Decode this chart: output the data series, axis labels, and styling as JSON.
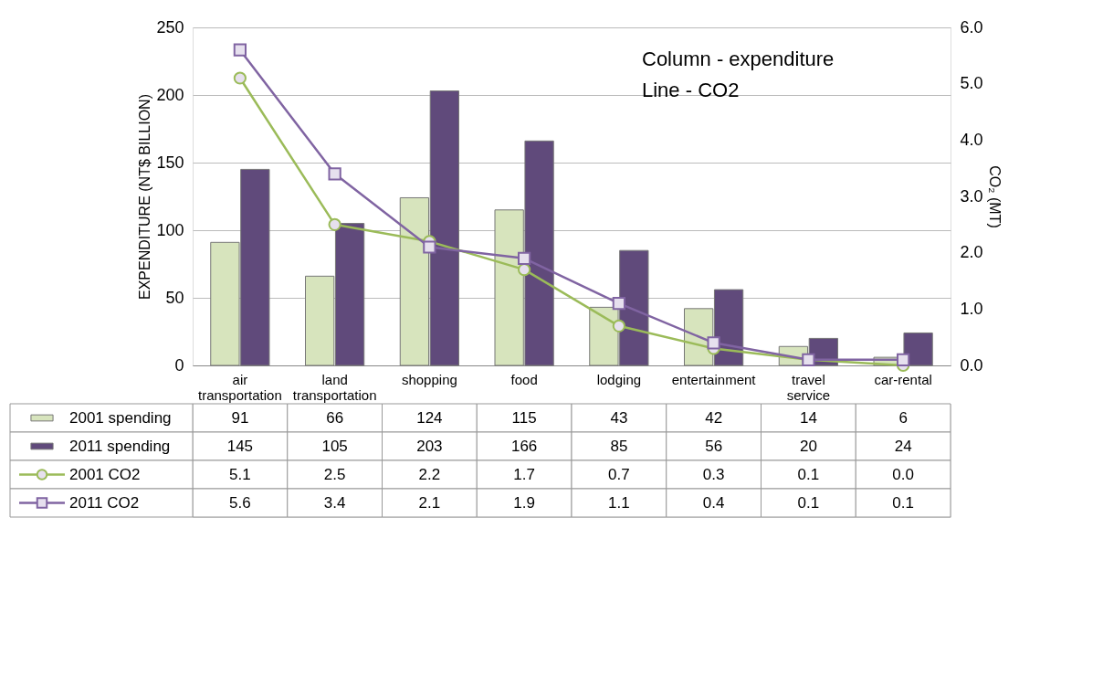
{
  "chart_data": {
    "type": "bar",
    "categories": [
      "air transportation",
      "land transportation",
      "shopping",
      "food",
      "lodging",
      "entertainment",
      "travel service",
      "car-rental"
    ],
    "series": [
      {
        "name": "2001 spending",
        "color": "#d7e4bd",
        "values": [
          91,
          66,
          124,
          115,
          43,
          42,
          14,
          6
        ],
        "value_labels": [
          "91",
          "66",
          "124",
          "115",
          "43",
          "42",
          "14",
          "6"
        ]
      },
      {
        "name": "2011 spending",
        "color": "#604a7b",
        "values": [
          145,
          105,
          203,
          166,
          85,
          56,
          20,
          24
        ],
        "value_labels": [
          "145",
          "105",
          "203",
          "166",
          "85",
          "56",
          "20",
          "24"
        ]
      },
      {
        "name": "2001 CO2",
        "type": "line",
        "axis": "y2",
        "marker": "circle",
        "color": "#9bbb59",
        "values": [
          5.1,
          2.5,
          2.2,
          1.7,
          0.7,
          0.3,
          0.1,
          0.0
        ],
        "value_labels": [
          "5.1",
          "2.5",
          "2.2",
          "1.7",
          "0.7",
          "0.3",
          "0.1",
          "0.0"
        ]
      },
      {
        "name": "2011 CO2",
        "type": "line",
        "axis": "y2",
        "marker": "square",
        "color": "#8064a2",
        "values": [
          5.6,
          3.4,
          2.1,
          1.9,
          1.1,
          0.4,
          0.1,
          0.1
        ],
        "value_labels": [
          "5.6",
          "3.4",
          "2.1",
          "1.9",
          "1.1",
          "0.4",
          "0.1",
          "0.1"
        ]
      }
    ],
    "ylabel": "EXPENDITURE (NT$ BILLION)",
    "y2label": "CO₂ (MT)",
    "ylim": [
      0,
      250
    ],
    "yticks": [
      0,
      50,
      100,
      150,
      200,
      250
    ],
    "y2lim": [
      0,
      6
    ],
    "y2ticks": [
      {
        "value": 0,
        "label": "0.0"
      },
      {
        "value": 1,
        "label": "1.0"
      },
      {
        "value": 2,
        "label": "2.0"
      },
      {
        "value": 3,
        "label": "3.0"
      },
      {
        "value": 4,
        "label": "4.0"
      },
      {
        "value": 5,
        "label": "5.0"
      },
      {
        "value": 6,
        "label": "6.0"
      }
    ],
    "annotations": [
      "Column - expenditure",
      "Line - CO2"
    ],
    "grid": "y",
    "legend": "bottom",
    "line_style": "solid"
  }
}
